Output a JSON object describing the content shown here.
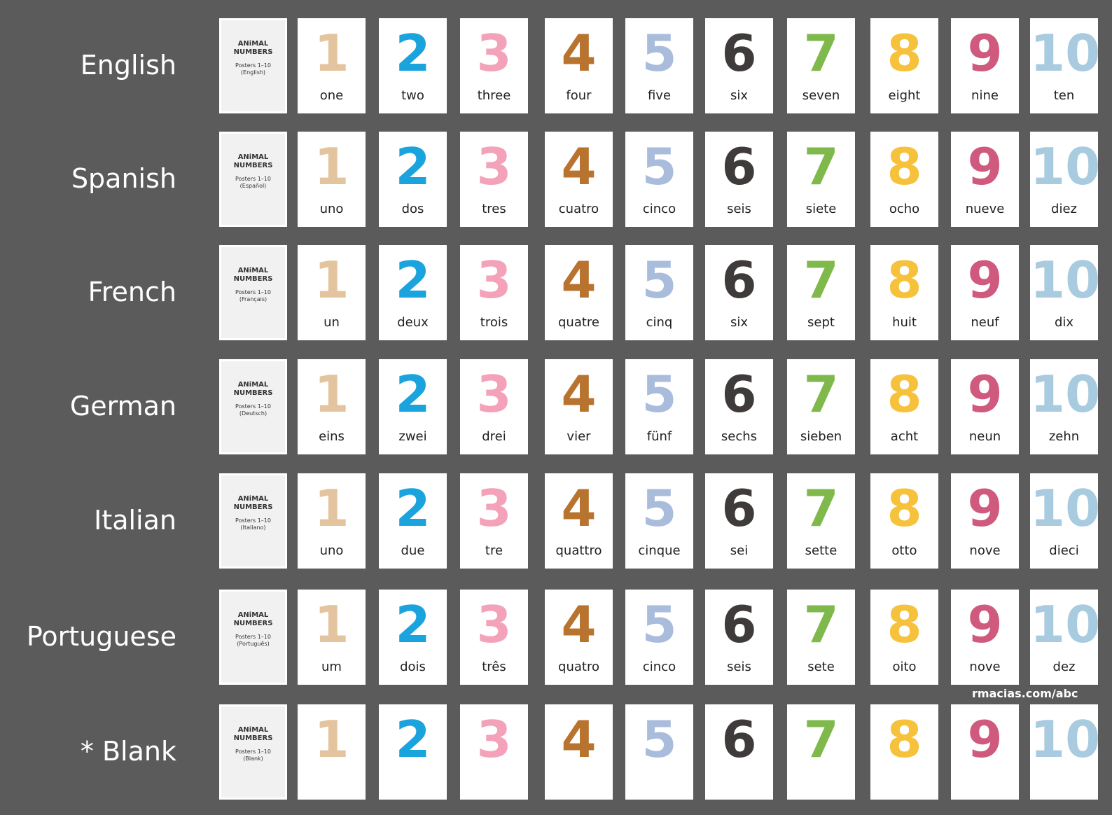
{
  "rows": [
    {
      "language": "English",
      "cover": {
        "title": [
          "ANiMAL",
          "NUMBERS"
        ],
        "subtitle": "Posters 1–10",
        "edition": "(English)"
      },
      "words": [
        "one",
        "two",
        "three",
        "four",
        "five",
        "six",
        "seven",
        "eight",
        "nine",
        "ten"
      ]
    },
    {
      "language": "Spanish",
      "cover": {
        "title": [
          "ANiMAL",
          "NUMBERS"
        ],
        "subtitle": "Posters 1–10",
        "edition": "(Español)"
      },
      "words": [
        "uno",
        "dos",
        "tres",
        "cuatro",
        "cinco",
        "seis",
        "siete",
        "ocho",
        "nueve",
        "diez"
      ]
    },
    {
      "language": "French",
      "cover": {
        "title": [
          "ANiMAL",
          "NUMBERS"
        ],
        "subtitle": "Posters 1–10",
        "edition": "(Français)"
      },
      "words": [
        "un",
        "deux",
        "trois",
        "quatre",
        "cinq",
        "six",
        "sept",
        "huit",
        "neuf",
        "dix"
      ]
    },
    {
      "language": "German",
      "cover": {
        "title": [
          "ANiMAL",
          "NUMBERS"
        ],
        "subtitle": "Posters 1–10",
        "edition": "(Deutsch)"
      },
      "words": [
        "eins",
        "zwei",
        "drei",
        "vier",
        "fünf",
        "sechs",
        "sieben",
        "acht",
        "neun",
        "zehn"
      ]
    },
    {
      "language": "Italian",
      "cover": {
        "title": [
          "ANiMAL",
          "NUMBERS"
        ],
        "subtitle": "Posters 1–10",
        "edition": "(Italiano)"
      },
      "words": [
        "uno",
        "due",
        "tre",
        "quattro",
        "cinque",
        "sei",
        "sette",
        "otto",
        "nove",
        "dieci"
      ]
    },
    {
      "language": "Portuguese",
      "cover": {
        "title": [
          "ANiMAL",
          "NUMBERS"
        ],
        "subtitle": "Posters 1–10",
        "edition": "(Português)"
      },
      "words": [
        "um",
        "dois",
        "três",
        "quatro",
        "cinco",
        "seis",
        "sete",
        "oito",
        "nove",
        "dez"
      ]
    },
    {
      "language": "* Blank",
      "cover": {
        "title": [
          "ANiMAL",
          "NUMBERS"
        ],
        "subtitle": "Posters 1–10",
        "edition": "(Blank)"
      }
    }
  ],
  "digits": [
    "1",
    "2",
    "3",
    "4",
    "5",
    "6",
    "7",
    "8",
    "9",
    "10"
  ],
  "footer": "rmacias.com/abc"
}
